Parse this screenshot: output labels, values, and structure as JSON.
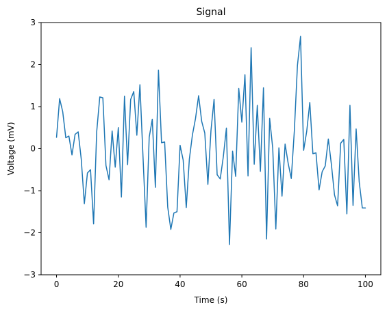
{
  "chart_data": {
    "type": "line",
    "title": "Signal",
    "xlabel": "Time (s)",
    "ylabel": "Voltage (mV)",
    "xlim": [
      -5,
      105
    ],
    "ylim": [
      -3,
      3
    ],
    "xticks": [
      0,
      20,
      40,
      60,
      80,
      100
    ],
    "yticks": [
      -3,
      -2,
      -1,
      0,
      1,
      2,
      3
    ],
    "grid": false,
    "series": [
      {
        "color": "#1f77b4",
        "x": [
          0,
          1,
          2,
          3,
          4,
          5,
          6,
          7,
          8,
          9,
          10,
          11,
          12,
          13,
          14,
          15,
          16,
          17,
          18,
          19,
          20,
          21,
          22,
          23,
          24,
          25,
          26,
          27,
          28,
          29,
          30,
          31,
          32,
          33,
          34,
          35,
          36,
          37,
          38,
          39,
          40,
          41,
          42,
          43,
          44,
          45,
          46,
          47,
          48,
          49,
          50,
          51,
          52,
          53,
          54,
          55,
          56,
          57,
          58,
          59,
          60,
          61,
          62,
          63,
          64,
          65,
          66,
          67,
          68,
          69,
          70,
          71,
          72,
          73,
          74,
          75,
          76,
          77,
          78,
          79,
          80,
          81,
          82,
          83,
          84,
          85,
          86,
          87,
          88,
          89,
          90,
          91,
          92,
          93,
          94,
          95,
          96,
          97,
          98,
          99,
          100
        ],
        "y": [
          0.27,
          1.19,
          0.88,
          0.26,
          0.3,
          -0.15,
          0.34,
          0.4,
          -0.25,
          -1.31,
          -0.58,
          -0.5,
          -1.79,
          0.4,
          1.23,
          1.21,
          -0.4,
          -0.74,
          0.42,
          -0.44,
          0.5,
          -1.15,
          1.25,
          -0.38,
          1.17,
          1.36,
          0.32,
          1.52,
          -0.2,
          -1.87,
          0.27,
          0.7,
          -0.92,
          1.87,
          0.14,
          0.16,
          -1.39,
          -1.92,
          -1.53,
          -1.5,
          0.08,
          -0.27,
          -1.4,
          -0.25,
          0.33,
          0.72,
          1.26,
          0.65,
          0.37,
          -0.85,
          0.43,
          1.17,
          -0.62,
          -0.72,
          -0.19,
          0.49,
          -2.28,
          -0.06,
          -0.66,
          1.43,
          0.63,
          1.76,
          -0.65,
          2.4,
          -0.37,
          1.03,
          -0.54,
          1.45,
          -2.15,
          0.72,
          0.01,
          -1.91,
          0.02,
          -1.13,
          0.11,
          -0.35,
          -0.71,
          0.43,
          1.98,
          2.67,
          -0.04,
          0.41,
          1.1,
          -0.12,
          -0.1,
          -0.98,
          -0.55,
          -0.41,
          0.23,
          -0.38,
          -1.1,
          -1.36,
          0.13,
          0.22,
          -1.55,
          1.03,
          -1.35,
          0.47,
          -0.79,
          -1.41,
          -1.41
        ]
      }
    ]
  }
}
